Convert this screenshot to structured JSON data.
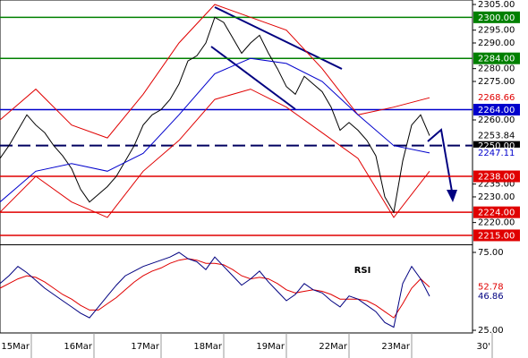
{
  "chart_data": [
    {
      "type": "line",
      "xlim": [
        0,
        110
      ],
      "ylim": [
        2211.5,
        2306.75
      ],
      "yticks": [
        {
          "value": 2305,
          "label": "2305.00"
        },
        {
          "value": 2295,
          "label": "2295.00"
        },
        {
          "value": 2290,
          "label": "2290.00"
        },
        {
          "value": 2280,
          "label": "2280.00"
        },
        {
          "value": 2275,
          "label": "2275.00"
        },
        {
          "value": 2260,
          "label": "2260.00"
        },
        {
          "value": 2235,
          "label": "2235.00"
        },
        {
          "value": 2230,
          "label": "2230.00"
        },
        {
          "value": 2220,
          "label": "2220.00"
        }
      ],
      "levels": [
        {
          "value": 2300,
          "label": "2300.00",
          "color": "#008000"
        },
        {
          "value": 2284,
          "label": "2284.00",
          "color": "#008000"
        },
        {
          "value": 2264,
          "label": "2264.00",
          "color": "#0000cc"
        },
        {
          "value": 2250,
          "label": "2250.00",
          "color": "#000060",
          "dash": true
        },
        {
          "value": 2238,
          "label": "2238.00",
          "color": "#e00000"
        },
        {
          "value": 2224,
          "label": "2224.00",
          "color": "#e00000"
        },
        {
          "value": 2215,
          "label": "2215.00",
          "color": "#e00000"
        }
      ],
      "series": [
        {
          "color": "#000000",
          "last_label": true,
          "x": [
            0,
            2,
            4,
            6,
            8,
            10,
            12,
            14,
            16,
            18,
            20,
            22,
            24,
            26,
            28,
            30,
            32,
            34,
            36,
            38,
            40,
            42,
            44,
            46,
            48,
            50,
            52,
            54,
            56,
            58,
            60,
            62,
            64,
            66,
            68,
            70,
            72,
            74,
            76,
            78,
            80,
            82,
            84,
            86,
            88,
            90,
            92,
            94,
            96
          ],
          "values": [
            2245,
            2250,
            2256,
            2262,
            2258,
            2255,
            2250,
            2246,
            2241,
            2233,
            2228,
            2231,
            2234,
            2238,
            2244,
            2250,
            2258,
            2262,
            2264,
            2268,
            2274,
            2283,
            2285,
            2290,
            2300,
            2298,
            2292,
            2286,
            2290,
            2293,
            2286,
            2280,
            2273,
            2270,
            2277,
            2274,
            2271,
            2265,
            2256,
            2259,
            2256,
            2252,
            2246,
            2230,
            2224,
            2244,
            2258,
            2262,
            2253.84
          ]
        },
        {
          "color": "#e00000",
          "last_label": true,
          "x": [
            0,
            8,
            16,
            24,
            32,
            40,
            48,
            56,
            64,
            72,
            80,
            88,
            96
          ],
          "values": [
            2260,
            2272,
            2258,
            2253,
            2270,
            2290,
            2305,
            2300,
            2295,
            2280,
            2262,
            2265,
            2268.66
          ]
        },
        {
          "color": "#e00000",
          "x": [
            0,
            8,
            16,
            24,
            32,
            40,
            48,
            56,
            64,
            72,
            80,
            88,
            96
          ],
          "values": [
            2224,
            2238,
            2228,
            2222,
            2240,
            2252,
            2268,
            2272,
            2265,
            2255,
            2245,
            2222,
            2240
          ]
        },
        {
          "color": "#0000cc",
          "last_label": true,
          "x": [
            0,
            8,
            16,
            24,
            32,
            40,
            48,
            56,
            64,
            72,
            80,
            88,
            96
          ],
          "values": [
            2228,
            2240,
            2243,
            2240,
            2247,
            2262,
            2278,
            2284,
            2282,
            2275,
            2262,
            2250,
            2247.11
          ]
        }
      ]
    },
    {
      "type": "line",
      "title": "RSI",
      "xlim": [
        0,
        110
      ],
      "ylim": [
        23.3,
        79.6
      ],
      "yticks": [
        {
          "value": 75,
          "label": "75.00"
        },
        {
          "value": 25,
          "label": "25.00"
        }
      ],
      "xticks": [
        {
          "value": 7,
          "label": "15Mar"
        },
        {
          "value": 21,
          "label": "16Mar"
        },
        {
          "value": 36,
          "label": "17Mar"
        },
        {
          "value": 50,
          "label": "18Mar"
        },
        {
          "value": 64,
          "label": "19Mar"
        },
        {
          "value": 78,
          "label": "22Mar"
        },
        {
          "value": 92,
          "label": "23Mar"
        },
        {
          "value": 110,
          "label": "30'"
        }
      ],
      "series": [
        {
          "color": "#e00000",
          "last_label": true,
          "x": [
            0,
            2,
            4,
            6,
            8,
            10,
            12,
            14,
            16,
            18,
            20,
            22,
            24,
            26,
            28,
            30,
            32,
            34,
            36,
            38,
            40,
            42,
            44,
            46,
            48,
            50,
            52,
            54,
            56,
            58,
            60,
            62,
            64,
            66,
            68,
            70,
            72,
            74,
            76,
            78,
            80,
            82,
            84,
            86,
            88,
            90,
            92,
            94,
            96
          ],
          "values": [
            52,
            55,
            58,
            60,
            59,
            56,
            52,
            48,
            45,
            41,
            38,
            38,
            42,
            46,
            51,
            56,
            60,
            63,
            65,
            68,
            70,
            71,
            70,
            68,
            68,
            67,
            64,
            60,
            58,
            59,
            58,
            55,
            51,
            49,
            50,
            51,
            50,
            48,
            45,
            45,
            45,
            44,
            41,
            37,
            33,
            42,
            52,
            58,
            52.78
          ]
        },
        {
          "color": "#000080",
          "last_label": true,
          "x": [
            0,
            2,
            4,
            6,
            8,
            10,
            12,
            14,
            16,
            18,
            20,
            22,
            24,
            26,
            28,
            30,
            32,
            34,
            36,
            38,
            40,
            42,
            44,
            46,
            48,
            50,
            52,
            54,
            56,
            58,
            60,
            62,
            64,
            66,
            68,
            70,
            72,
            74,
            76,
            78,
            80,
            82,
            84,
            86,
            88,
            90,
            92,
            94,
            96
          ],
          "values": [
            55,
            60,
            66,
            62,
            57,
            52,
            48,
            44,
            40,
            36,
            33,
            40,
            47,
            54,
            60,
            63,
            66,
            68,
            70,
            72,
            75,
            71,
            69,
            64,
            72,
            66,
            60,
            54,
            58,
            63,
            56,
            50,
            44,
            48,
            55,
            51,
            49,
            44,
            40,
            47,
            45,
            41,
            37,
            30,
            27,
            55,
            66,
            58,
            46.86
          ]
        }
      ]
    }
  ]
}
